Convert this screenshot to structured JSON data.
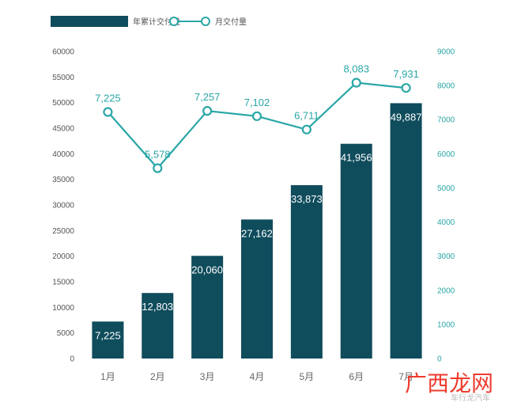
{
  "chart_data": {
    "type": "bar",
    "categories": [
      "1月",
      "2月",
      "3月",
      "4月",
      "5月",
      "6月",
      "7月"
    ],
    "series": [
      {
        "name": "年累计交付量",
        "type": "bar",
        "axis": "left",
        "values": [
          7225,
          12803,
          20060,
          27162,
          33873,
          41956,
          49887
        ],
        "labels": [
          "7,225",
          "12,803",
          "20,060",
          "27,162",
          "33,873",
          "41,956",
          "49,887"
        ]
      },
      {
        "name": "月交付量",
        "type": "line",
        "axis": "right",
        "values": [
          7225,
          5578,
          7257,
          7102,
          6711,
          8083,
          7931
        ],
        "labels": [
          "7,225",
          "5,578",
          "7,257",
          "7,102",
          "6,711",
          "8,083",
          "7,931"
        ]
      }
    ],
    "ylim_left": [
      0,
      60000
    ],
    "ylim_right": [
      0,
      9000
    ],
    "yticks_left": [
      "0",
      "5000",
      "10000",
      "15000",
      "20000",
      "25000",
      "30000",
      "35000",
      "40000",
      "45000",
      "50000",
      "55000",
      "60000"
    ],
    "yticks_right": [
      "0",
      "1000",
      "2000",
      "3000",
      "4000",
      "5000",
      "6000",
      "7000",
      "8000",
      "9000"
    ],
    "grid": false,
    "legend": "top-left",
    "colors": {
      "bar": "#0f4c5c",
      "line": "#2aa6a6",
      "left_axis_text": "#555555",
      "right_axis_text": "#2aa6a6"
    }
  },
  "watermark": {
    "main": "广西龙网",
    "sub": "车行龙汽车"
  }
}
